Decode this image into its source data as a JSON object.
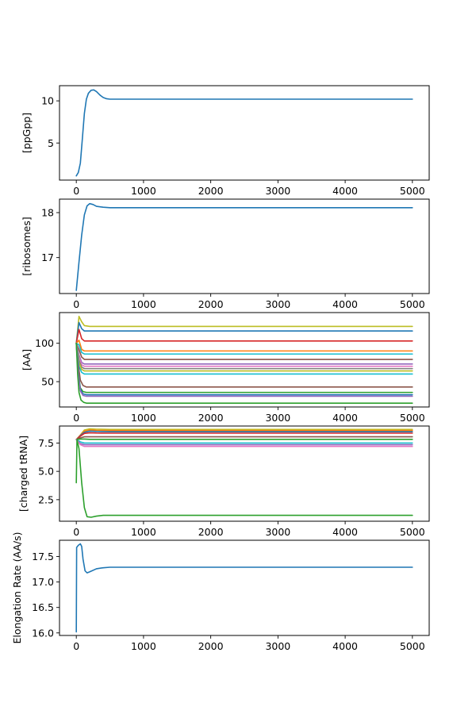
{
  "chart_data": [
    {
      "type": "line",
      "ylabel": "[ppGpp]",
      "xlim": [
        -250,
        5250
      ],
      "ylim": [
        0.6,
        11.8
      ],
      "xticks": [
        0,
        1000,
        2000,
        3000,
        4000,
        5000
      ],
      "yticks": [
        5,
        10
      ],
      "series": [
        {
          "color": "#1f77b4",
          "points": [
            [
              0,
              1.1
            ],
            [
              30,
              1.5
            ],
            [
              60,
              2.6
            ],
            [
              90,
              5.5
            ],
            [
              120,
              8.5
            ],
            [
              150,
              10.2
            ],
            [
              180,
              10.9
            ],
            [
              220,
              11.25
            ],
            [
              260,
              11.3
            ],
            [
              300,
              11.1
            ],
            [
              350,
              10.7
            ],
            [
              400,
              10.4
            ],
            [
              450,
              10.25
            ],
            [
              500,
              10.2
            ],
            [
              600,
              10.2
            ],
            [
              5000,
              10.2
            ]
          ]
        }
      ]
    },
    {
      "type": "line",
      "ylabel": "[ribosomes]",
      "xlim": [
        -250,
        5250
      ],
      "ylim": [
        16.2,
        18.3
      ],
      "xticks": [
        0,
        1000,
        2000,
        3000,
        4000,
        5000
      ],
      "yticks": [
        17,
        18
      ],
      "series": [
        {
          "color": "#1f77b4",
          "points": [
            [
              0,
              16.27
            ],
            [
              40,
              16.9
            ],
            [
              80,
              17.5
            ],
            [
              120,
              17.95
            ],
            [
              160,
              18.15
            ],
            [
              200,
              18.2
            ],
            [
              250,
              18.18
            ],
            [
              300,
              18.14
            ],
            [
              400,
              18.12
            ],
            [
              500,
              18.11
            ],
            [
              5000,
              18.11
            ]
          ]
        }
      ]
    },
    {
      "type": "line",
      "ylabel": "[AA]",
      "xlim": [
        -250,
        5250
      ],
      "ylim": [
        17,
        140
      ],
      "xticks": [
        0,
        1000,
        2000,
        3000,
        4000,
        5000
      ],
      "yticks": [
        50,
        100
      ],
      "series": [
        {
          "color": "#bcbd22",
          "points": [
            [
              0,
              100
            ],
            [
              40,
              135
            ],
            [
              80,
              128
            ],
            [
              120,
              123
            ],
            [
              200,
              122
            ],
            [
              5000,
              122
            ]
          ]
        },
        {
          "color": "#1f77b4",
          "points": [
            [
              0,
              100
            ],
            [
              40,
              127
            ],
            [
              80,
              119
            ],
            [
              120,
              116
            ],
            [
              200,
              116
            ],
            [
              5000,
              116
            ]
          ]
        },
        {
          "color": "#d62728",
          "points": [
            [
              0,
              100
            ],
            [
              40,
              118
            ],
            [
              80,
              106
            ],
            [
              120,
              103
            ],
            [
              200,
              103
            ],
            [
              5000,
              103
            ]
          ]
        },
        {
          "color": "#ff7f0e",
          "points": [
            [
              0,
              100
            ],
            [
              40,
              104
            ],
            [
              80,
              92
            ],
            [
              120,
              90
            ],
            [
              200,
              90
            ],
            [
              5000,
              90
            ]
          ]
        },
        {
          "color": "#17becf",
          "points": [
            [
              0,
              100
            ],
            [
              40,
              98
            ],
            [
              80,
              88
            ],
            [
              120,
              86
            ],
            [
              200,
              86
            ],
            [
              5000,
              86
            ]
          ]
        },
        {
          "color": "#8c564b",
          "points": [
            [
              0,
              100
            ],
            [
              40,
              92
            ],
            [
              80,
              82
            ],
            [
              120,
              79
            ],
            [
              200,
              79
            ],
            [
              5000,
              79
            ]
          ]
        },
        {
          "color": "#9467bd",
          "points": [
            [
              0,
              100
            ],
            [
              40,
              85
            ],
            [
              80,
              75
            ],
            [
              120,
              73
            ],
            [
              200,
              73
            ],
            [
              5000,
              73
            ]
          ]
        },
        {
          "color": "#e377c2",
          "points": [
            [
              0,
              100
            ],
            [
              40,
              82
            ],
            [
              80,
              72
            ],
            [
              120,
              70
            ],
            [
              200,
              70
            ],
            [
              5000,
              70
            ]
          ]
        },
        {
          "color": "#7f7f7f",
          "points": [
            [
              0,
              100
            ],
            [
              40,
              78
            ],
            [
              80,
              69
            ],
            [
              120,
              67
            ],
            [
              200,
              67
            ],
            [
              5000,
              67
            ]
          ]
        },
        {
          "color": "#bcbd22",
          "points": [
            [
              0,
              100
            ],
            [
              40,
              75
            ],
            [
              80,
              66
            ],
            [
              120,
              64
            ],
            [
              200,
              64
            ],
            [
              5000,
              64
            ]
          ]
        },
        {
          "color": "#17becf",
          "points": [
            [
              0,
              100
            ],
            [
              40,
              70
            ],
            [
              80,
              62
            ],
            [
              120,
              60
            ],
            [
              200,
              60
            ],
            [
              5000,
              60
            ]
          ]
        },
        {
          "color": "#8c564b",
          "points": [
            [
              0,
              100
            ],
            [
              30,
              72
            ],
            [
              60,
              52
            ],
            [
              100,
              45
            ],
            [
              150,
              43
            ],
            [
              5000,
              43
            ]
          ]
        },
        {
          "color": "#2ca02c",
          "points": [
            [
              0,
              100
            ],
            [
              30,
              62
            ],
            [
              60,
              42
            ],
            [
              100,
              37
            ],
            [
              150,
              36
            ],
            [
              5000,
              36
            ]
          ]
        },
        {
          "color": "#1f77b4",
          "points": [
            [
              0,
              100
            ],
            [
              30,
              60
            ],
            [
              60,
              40
            ],
            [
              100,
              34
            ],
            [
              150,
              33
            ],
            [
              5000,
              33
            ]
          ]
        },
        {
          "color": "#9467bd",
          "points": [
            [
              0,
              100
            ],
            [
              30,
              58
            ],
            [
              60,
              38
            ],
            [
              100,
              32
            ],
            [
              150,
              31
            ],
            [
              5000,
              31
            ]
          ]
        },
        {
          "color": "#2ca02c",
          "points": [
            [
              0,
              100
            ],
            [
              20,
              60
            ],
            [
              40,
              36
            ],
            [
              70,
              26
            ],
            [
              110,
              23
            ],
            [
              150,
              22
            ],
            [
              5000,
              22
            ]
          ]
        }
      ]
    },
    {
      "type": "line",
      "ylabel": "[charged tRNA]",
      "xlim": [
        -250,
        5250
      ],
      "ylim": [
        0.6,
        9.0
      ],
      "xticks": [
        0,
        1000,
        2000,
        3000,
        4000,
        5000
      ],
      "yticks": [
        2.5,
        5.0,
        7.5
      ],
      "series": [
        {
          "color": "#bcbd22",
          "points": [
            [
              0,
              7.8
            ],
            [
              60,
              8.2
            ],
            [
              120,
              8.65
            ],
            [
              200,
              8.75
            ],
            [
              300,
              8.72
            ],
            [
              500,
              8.7
            ],
            [
              5000,
              8.7
            ]
          ]
        },
        {
          "color": "#ff7f0e",
          "points": [
            [
              0,
              7.8
            ],
            [
              60,
              8.2
            ],
            [
              120,
              8.55
            ],
            [
              200,
              8.65
            ],
            [
              300,
              8.62
            ],
            [
              500,
              8.6
            ],
            [
              5000,
              8.6
            ]
          ]
        },
        {
          "color": "#1f77b4",
          "points": [
            [
              0,
              7.8
            ],
            [
              60,
              8.15
            ],
            [
              120,
              8.45
            ],
            [
              200,
              8.55
            ],
            [
              300,
              8.52
            ],
            [
              500,
              8.5
            ],
            [
              5000,
              8.5
            ]
          ]
        },
        {
          "color": "#d62728",
          "points": [
            [
              0,
              7.8
            ],
            [
              60,
              8.1
            ],
            [
              120,
              8.35
            ],
            [
              200,
              8.4
            ],
            [
              300,
              8.38
            ],
            [
              500,
              8.37
            ],
            [
              5000,
              8.37
            ]
          ]
        },
        {
          "color": "#8c564b",
          "points": [
            [
              0,
              7.8
            ],
            [
              60,
              7.95
            ],
            [
              120,
              8.05
            ],
            [
              200,
              8.05
            ],
            [
              5000,
              8.05
            ]
          ]
        },
        {
          "color": "#2ca02c",
          "points": [
            [
              0,
              7.8
            ],
            [
              60,
              7.85
            ],
            [
              120,
              7.85
            ],
            [
              200,
              7.82
            ],
            [
              5000,
              7.82
            ]
          ]
        },
        {
          "color": "#17becf",
          "points": [
            [
              0,
              7.8
            ],
            [
              60,
              7.6
            ],
            [
              120,
              7.5
            ],
            [
              200,
              7.5
            ],
            [
              5000,
              7.5
            ]
          ]
        },
        {
          "color": "#9467bd",
          "points": [
            [
              0,
              7.8
            ],
            [
              60,
              7.45
            ],
            [
              120,
              7.35
            ],
            [
              200,
              7.35
            ],
            [
              5000,
              7.35
            ]
          ]
        },
        {
          "color": "#e377c2",
          "points": [
            [
              0,
              7.8
            ],
            [
              60,
              7.35
            ],
            [
              120,
              7.2
            ],
            [
              200,
              7.2
            ],
            [
              5000,
              7.2
            ]
          ]
        },
        {
          "color": "#2ca02c",
          "points": [
            [
              0,
              4.0
            ],
            [
              10,
              7.8
            ],
            [
              40,
              7.0
            ],
            [
              80,
              4.0
            ],
            [
              120,
              1.8
            ],
            [
              160,
              1.0
            ],
            [
              220,
              0.95
            ],
            [
              300,
              1.05
            ],
            [
              400,
              1.12
            ],
            [
              500,
              1.12
            ],
            [
              5000,
              1.12
            ]
          ]
        }
      ]
    },
    {
      "type": "line",
      "ylabel": "Elongation Rate (AA/s)",
      "xlim": [
        -250,
        5250
      ],
      "ylim": [
        15.95,
        17.82
      ],
      "xticks": [
        0,
        1000,
        2000,
        3000,
        4000,
        5000
      ],
      "yticks": [
        16.0,
        16.5,
        17.0,
        17.5
      ],
      "series": [
        {
          "color": "#1f77b4",
          "points": [
            [
              0,
              16.02
            ],
            [
              5,
              17.68
            ],
            [
              30,
              17.72
            ],
            [
              60,
              17.75
            ],
            [
              80,
              17.7
            ],
            [
              100,
              17.45
            ],
            [
              130,
              17.22
            ],
            [
              160,
              17.18
            ],
            [
              200,
              17.2
            ],
            [
              300,
              17.26
            ],
            [
              400,
              17.28
            ],
            [
              500,
              17.29
            ],
            [
              5000,
              17.29
            ]
          ]
        }
      ]
    }
  ]
}
